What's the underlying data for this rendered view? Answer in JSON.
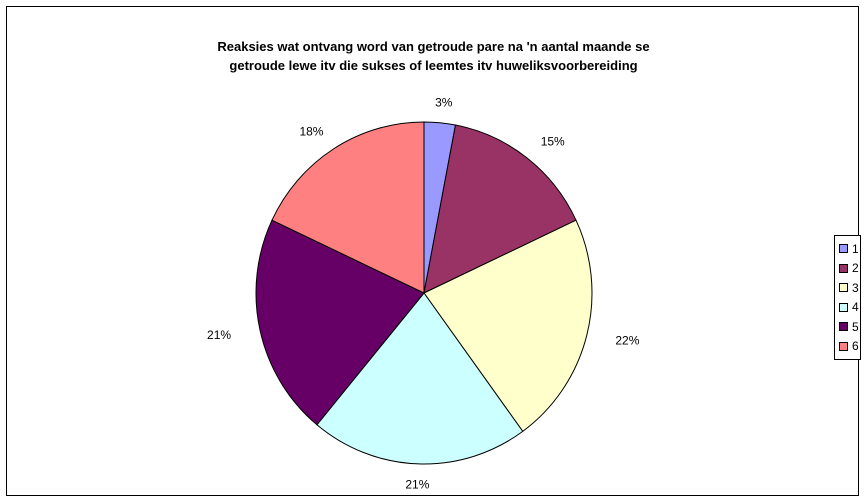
{
  "chart_data": {
    "type": "pie",
    "title_lines": [
      "Reaksies wat ontvang word van getroude pare na 'n aantal maande se",
      "getroude lewe itv die sukses of leemtes itv huweliksvoorbereiding"
    ],
    "categories": [
      "1",
      "2",
      "3",
      "4",
      "5",
      "6"
    ],
    "values": [
      3,
      15,
      22,
      21,
      21,
      18
    ],
    "value_labels": [
      "3%",
      "15%",
      "22%",
      "21%",
      "21%",
      "18%"
    ],
    "colors": [
      "#9999FF",
      "#993366",
      "#FFFFCC",
      "#CCFFFF",
      "#660066",
      "#FF8080"
    ],
    "legend_position": "right",
    "grid": false
  }
}
